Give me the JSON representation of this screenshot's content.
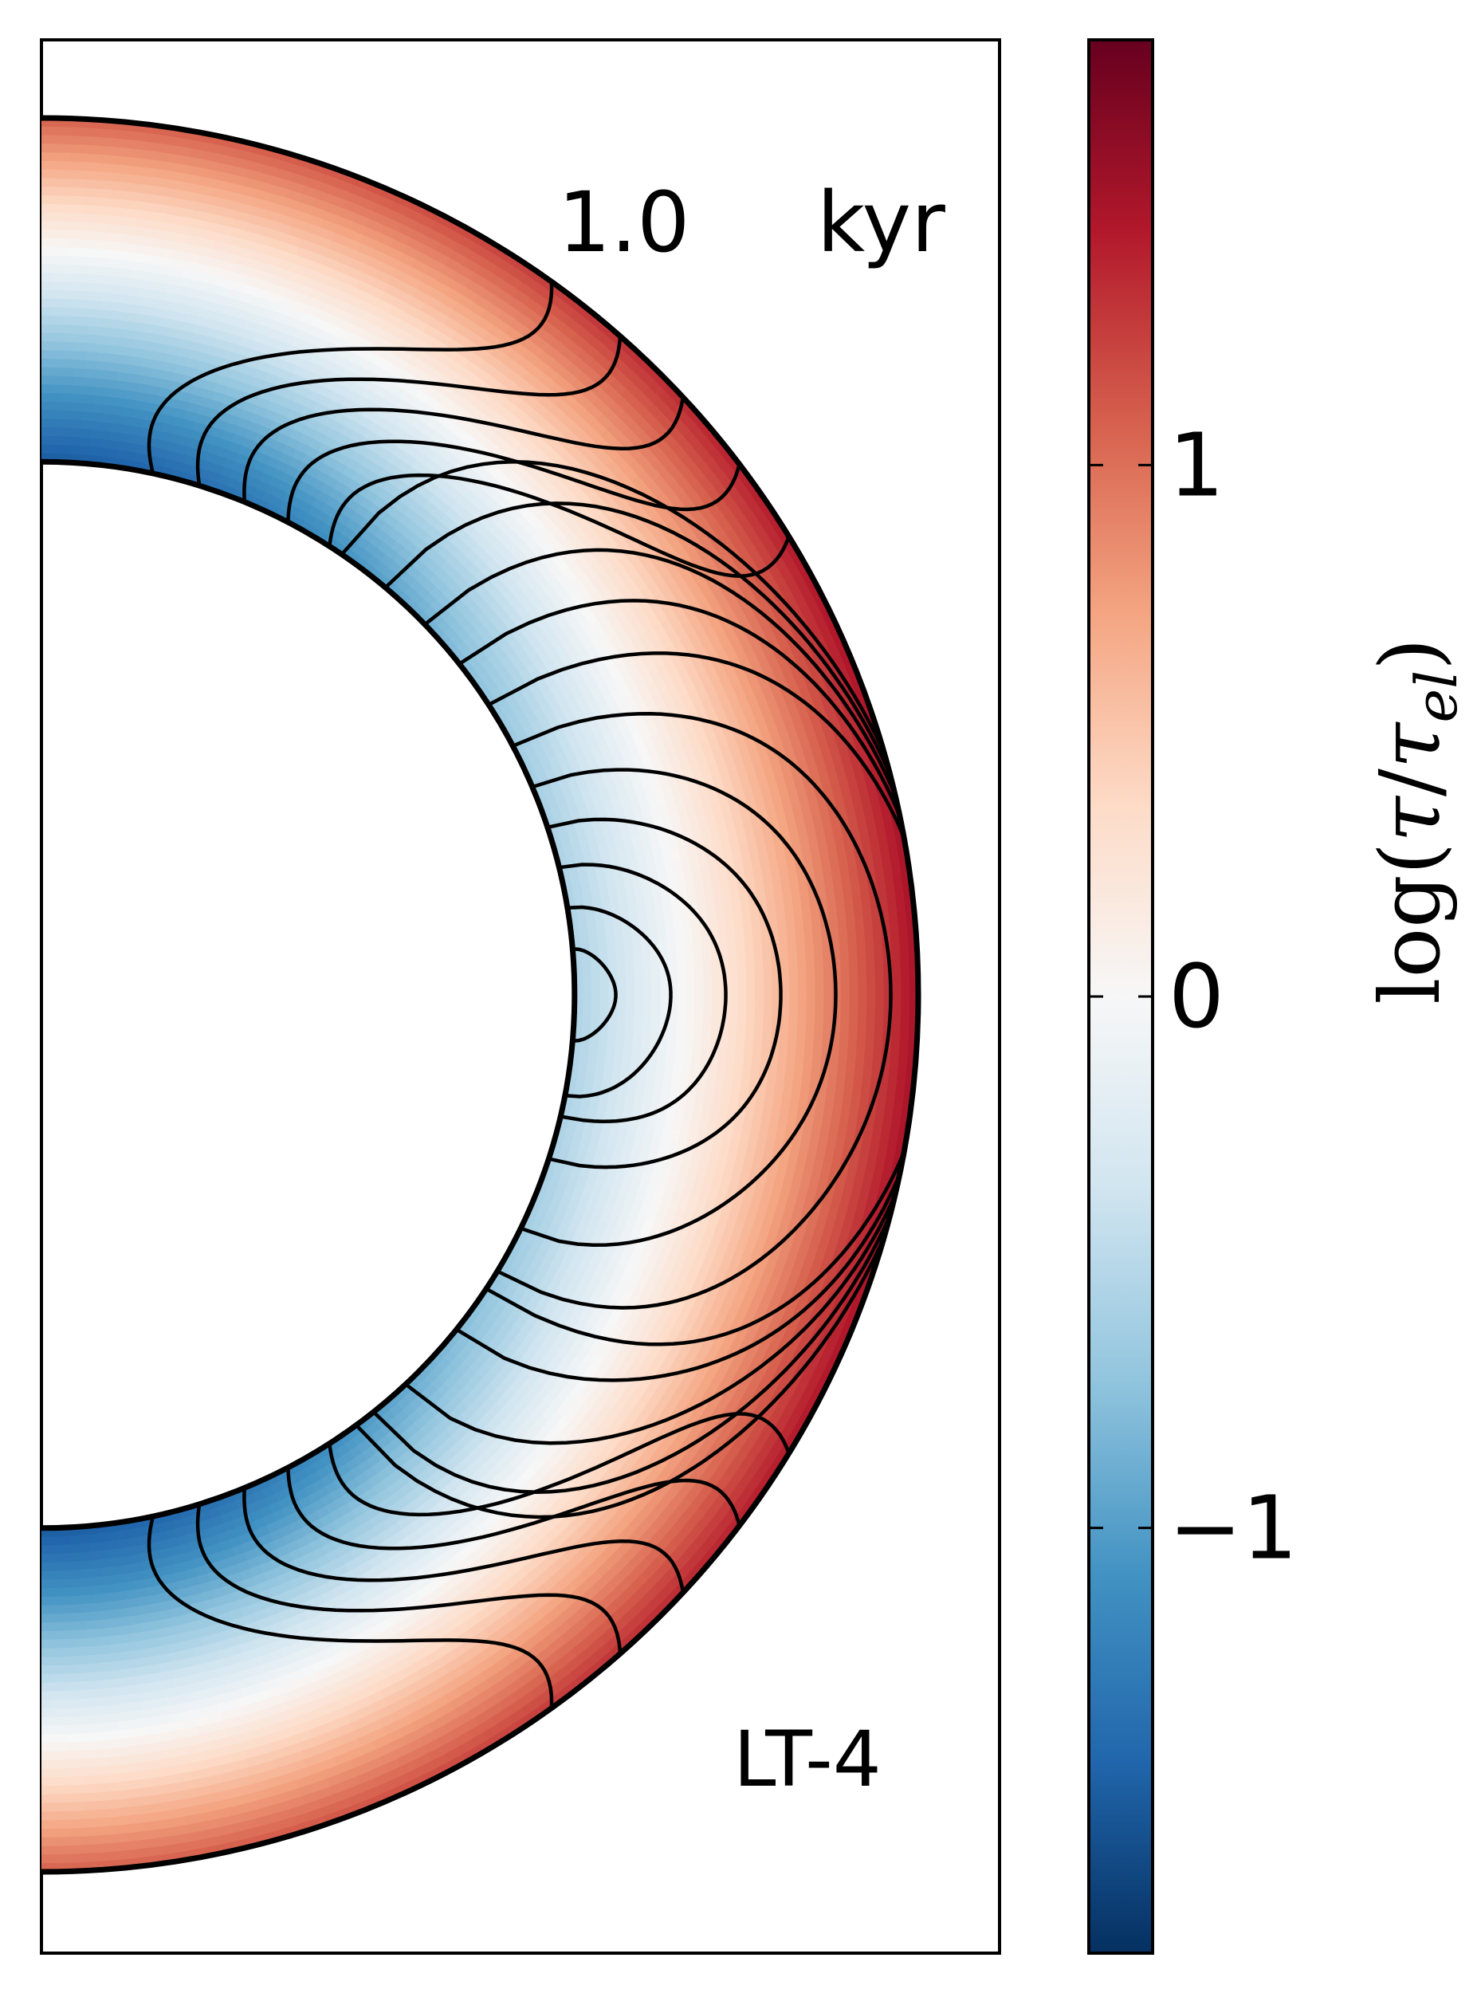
{
  "chart_data": [
    {
      "type": "heatmap",
      "description_kind": "meridional half-annulus color map with field lines",
      "annotations": {
        "time_value": "1.0",
        "time_unit": "kyr",
        "model": "LT-4"
      },
      "field": {
        "quantity": "log(τ/τ_el)",
        "inner_radius_fraction": 0.608,
        "field_lines": 11,
        "pattern": "dipole-like closed loops, crossing latitude bands of the crust"
      },
      "colorbar": {
        "label_prefix": "log(",
        "label_tau": "τ",
        "label_sep": "/",
        "label_sub": "el",
        "label_suffix": ")",
        "range": [
          -1.8,
          1.8
        ],
        "ticks": [
          {
            "value": 1,
            "label": "1"
          },
          {
            "value": 0,
            "label": "0"
          },
          {
            "value": -1,
            "label": "−1"
          }
        ],
        "colormap": "RdBu_r",
        "stops": [
          "#053061",
          "#2166ac",
          "#4393c3",
          "#92c5de",
          "#d1e5f0",
          "#f7f7f7",
          "#fddbc7",
          "#f4a582",
          "#d6604d",
          "#b2182b",
          "#67001f"
        ]
      }
    }
  ]
}
